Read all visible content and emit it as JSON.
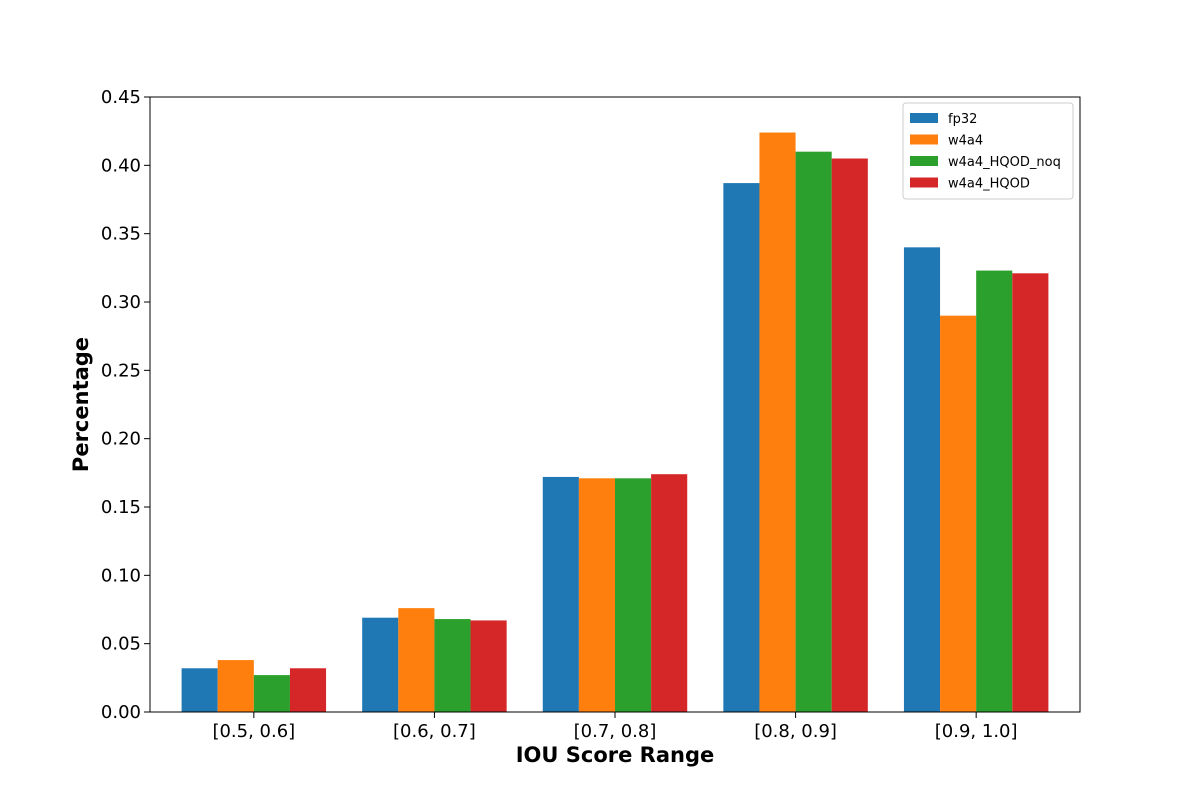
{
  "chart_data": {
    "type": "bar",
    "title": "",
    "xlabel": "IOU Score Range",
    "ylabel": "Percentage",
    "categories": [
      "[0.5, 0.6]",
      "[0.6, 0.7]",
      "[0.7, 0.8]",
      "[0.8, 0.9]",
      "[0.9, 1.0]"
    ],
    "series": [
      {
        "name": "fp32",
        "color": "#1f77b4",
        "values": [
          0.032,
          0.069,
          0.172,
          0.387,
          0.34
        ]
      },
      {
        "name": "w4a4",
        "color": "#ff7f0e",
        "values": [
          0.038,
          0.076,
          0.171,
          0.424,
          0.29
        ]
      },
      {
        "name": "w4a4_HQOD_noq",
        "color": "#2ca02c",
        "values": [
          0.027,
          0.068,
          0.171,
          0.41,
          0.323
        ]
      },
      {
        "name": "w4a4_HQOD",
        "color": "#d62728",
        "values": [
          0.032,
          0.067,
          0.174,
          0.405,
          0.321
        ]
      }
    ],
    "ylim": [
      0,
      0.45
    ],
    "yticks": [
      "0.00",
      "0.05",
      "0.10",
      "0.15",
      "0.20",
      "0.25",
      "0.30",
      "0.35",
      "0.40",
      "0.45"
    ],
    "grid": false,
    "legend_position": "top-right"
  }
}
